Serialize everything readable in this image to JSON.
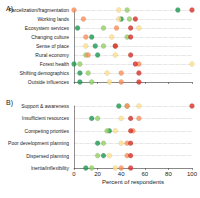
{
  "chart_data": [
    {
      "type": "scatter",
      "title": "A)",
      "categories": [
        "Parcelization/fragmentation",
        "Working lands",
        "Ecosystem services",
        "Changing culture",
        "Sense of place",
        "Rural economy",
        "Forest health",
        "Shifting demographics",
        "Outside influences"
      ],
      "series": [
        {
          "color": "#1a9850",
          "values": [
            88,
            40,
            3,
            15,
            18,
            20,
            0,
            5,
            5
          ]
        },
        {
          "color": "#91cf60",
          "values": [
            45,
            47,
            25,
            45,
            25,
            10,
            5,
            12,
            15
          ]
        },
        {
          "color": "#fee08b",
          "values": [
            38,
            38,
            55,
            32,
            10,
            35,
            100,
            28,
            30
          ]
        },
        {
          "color": "#fc8d59",
          "values": [
            0,
            8,
            36,
            10,
            35,
            12,
            55,
            40,
            40
          ]
        },
        {
          "color": "#d73027",
          "values": [
            100,
            52,
            48,
            48,
            35,
            48,
            52,
            55,
            55
          ]
        }
      ],
      "xlim": [
        0,
        100
      ],
      "xticks": [
        0,
        20,
        40,
        60,
        80,
        100
      ],
      "grid": true,
      "tick_labels": "y"
    },
    {
      "type": "scatter",
      "title": "B)",
      "xlabel": "Percent of respondents",
      "categories": [
        "Support & awareness",
        "Insufficient resources",
        "Competing priorities",
        "Poor development planning",
        "Dispersed planning",
        "Inertia/inflexibility"
      ],
      "series": [
        {
          "color": "#1a9850",
          "values": [
            38,
            15,
            30,
            20,
            25,
            10
          ]
        },
        {
          "color": "#91cf60",
          "values": [
            45,
            20,
            28,
            25,
            20,
            15
          ]
        },
        {
          "color": "#fee08b",
          "values": [
            55,
            40,
            35,
            40,
            30,
            35
          ]
        },
        {
          "color": "#fc8d59",
          "values": [
            45,
            55,
            50,
            45,
            45,
            40
          ]
        },
        {
          "color": "#d73027",
          "values": [
            100,
            48,
            48,
            48,
            48,
            48
          ]
        }
      ],
      "xlim": [
        0,
        100
      ],
      "xticks": [
        0,
        20,
        40,
        60,
        80,
        100
      ],
      "grid": true,
      "tick_labels": true
    }
  ]
}
